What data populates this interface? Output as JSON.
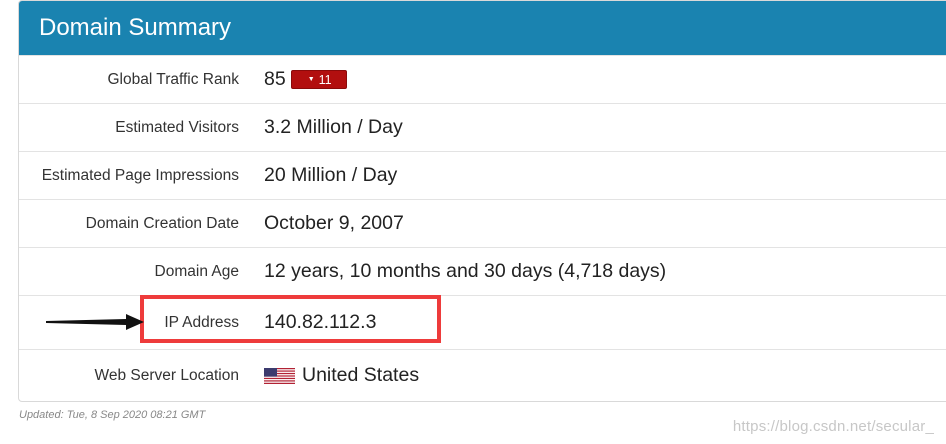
{
  "panel": {
    "title": "Domain Summary"
  },
  "rows": [
    {
      "label": "Global Traffic Rank",
      "value": "85",
      "badge": "11"
    },
    {
      "label": "Estimated Visitors",
      "value": "3.2 Million / Day"
    },
    {
      "label": "Estimated Page Impressions",
      "value": "20 Million / Day"
    },
    {
      "label": "Domain Creation Date",
      "value": "October 9, 2007"
    },
    {
      "label": "Domain Age",
      "value": "12 years, 10 months and 30 days (4,718 days)"
    },
    {
      "label": "IP Address",
      "value": "140.82.112.3"
    },
    {
      "label": "Web Server Location",
      "value": "United States",
      "flag_icon": "us-flag-icon"
    }
  ],
  "footer": {
    "updated": "Updated: Tue, 8 Sep 2020 08:21 GMT"
  },
  "watermark": "https://blog.csdn.net/secular_",
  "colors": {
    "header": "#1a83b0",
    "badge": "#b20f0f",
    "highlight": "#ee3b3b"
  }
}
